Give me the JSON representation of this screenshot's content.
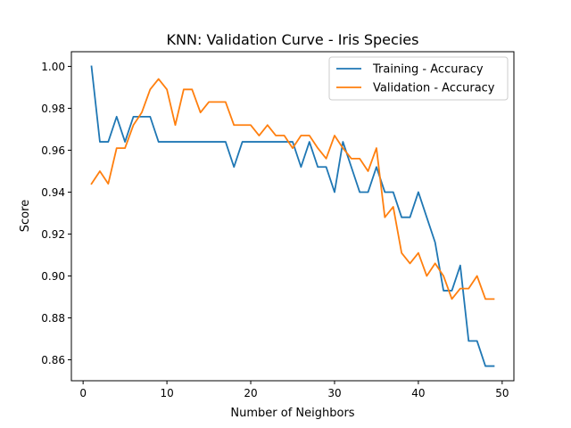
{
  "chart_data": {
    "type": "line",
    "title": "KNN: Validation Curve - Iris Species",
    "xlabel": "Number of Neighbors",
    "ylabel": "Score",
    "xlim": [
      -1.4,
      51.4
    ],
    "ylim": [
      0.85,
      1.007
    ],
    "xticks": [
      0,
      10,
      20,
      30,
      40,
      50
    ],
    "yticks": [
      0.86,
      0.88,
      0.9,
      0.92,
      0.94,
      0.96,
      0.98,
      1.0
    ],
    "ytick_labels": [
      "0.86",
      "0.88",
      "0.90",
      "0.92",
      "0.94",
      "0.96",
      "0.98",
      "1.00"
    ],
    "legend_position": "top-right",
    "grid": false,
    "x": [
      1,
      2,
      3,
      4,
      5,
      6,
      7,
      8,
      9,
      10,
      11,
      12,
      13,
      14,
      15,
      16,
      17,
      18,
      19,
      20,
      21,
      22,
      23,
      24,
      25,
      26,
      27,
      28,
      29,
      30,
      31,
      32,
      33,
      34,
      35,
      36,
      37,
      38,
      39,
      40,
      41,
      42,
      43,
      44,
      45,
      46,
      47,
      48,
      49
    ],
    "series": [
      {
        "name": "Training - Accuracy",
        "color": "#1f77b4",
        "values": [
          1.0,
          0.964,
          0.964,
          0.976,
          0.964,
          0.976,
          0.976,
          0.976,
          0.964,
          0.964,
          0.964,
          0.964,
          0.964,
          0.964,
          0.964,
          0.964,
          0.964,
          0.952,
          0.964,
          0.964,
          0.964,
          0.964,
          0.964,
          0.964,
          0.964,
          0.952,
          0.964,
          0.952,
          0.952,
          0.94,
          0.964,
          0.952,
          0.94,
          0.94,
          0.952,
          0.94,
          0.94,
          0.928,
          0.928,
          0.94,
          0.928,
          0.916,
          0.893,
          0.893,
          0.905,
          0.869,
          0.869,
          0.857,
          0.857
        ]
      },
      {
        "name": "Validation - Accuracy",
        "color": "#ff7f0e",
        "values": [
          0.944,
          0.95,
          0.944,
          0.961,
          0.961,
          0.972,
          0.978,
          0.989,
          0.994,
          0.989,
          0.972,
          0.989,
          0.989,
          0.978,
          0.983,
          0.983,
          0.983,
          0.972,
          0.972,
          0.972,
          0.967,
          0.972,
          0.967,
          0.967,
          0.961,
          0.967,
          0.967,
          0.961,
          0.956,
          0.967,
          0.961,
          0.956,
          0.956,
          0.95,
          0.961,
          0.928,
          0.933,
          0.911,
          0.906,
          0.911,
          0.9,
          0.906,
          0.9,
          0.889,
          0.894,
          0.894,
          0.9,
          0.889,
          0.889
        ]
      }
    ]
  }
}
